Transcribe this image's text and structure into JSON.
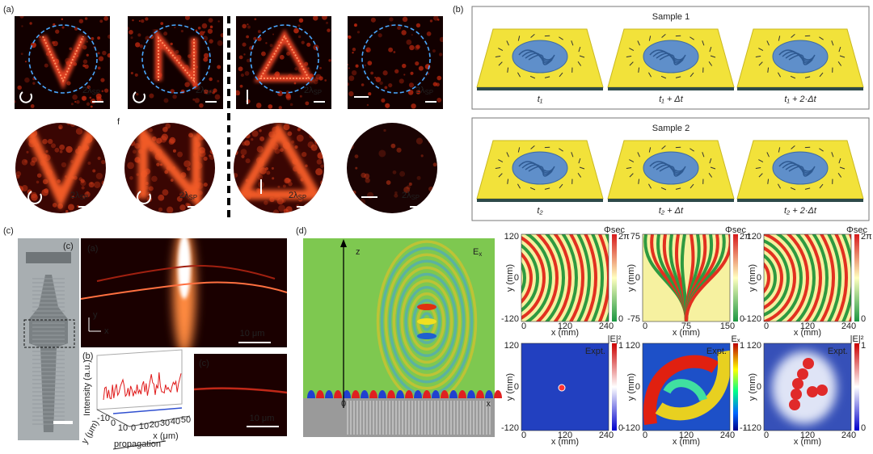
{
  "panel_labels": [
    "(a)",
    "(b)",
    "(c)",
    "(d)"
  ],
  "a": {
    "scale_main": "2λ",
    "scale_sub": "SP",
    "f_label": "f"
  },
  "b": {
    "samples": [
      {
        "title": "Sample 1",
        "times": [
          "t₁",
          "t₁ + Δt",
          "t₁ + 2·Δt"
        ]
      },
      {
        "title": "Sample 2",
        "times": [
          "t₂",
          "t₂ + Δt",
          "t₂ + 2·Δt"
        ]
      }
    ]
  },
  "c": {
    "inner_labels": [
      "(c)",
      "(a)",
      "(b)",
      "(c)"
    ],
    "scale_bar": "10 μm",
    "axis_y": "y",
    "axis_x": "x",
    "plot": {
      "ylabel": "Intensity (a.u.)",
      "xlabel": "x (μm)",
      "zlabel": "y (μm)",
      "direction": "propagation",
      "xticks": [
        "0",
        "10",
        "20",
        "30",
        "40",
        "50"
      ],
      "zticks": [
        "-10",
        "0",
        "10"
      ]
    }
  },
  "d": {
    "sim": {
      "z": "z",
      "field_main": "E",
      "field_sub": "x",
      "origin": "0",
      "x": "x"
    },
    "maps": [
      {
        "ylabel": "y (mm)",
        "xlabel": "x (mm)",
        "yticks": [
          "120",
          "0",
          "-120"
        ],
        "xticks": [
          "0",
          "120",
          "240"
        ],
        "cbar_title": "Φsec",
        "cbar": [
          "2π",
          "0"
        ]
      },
      {
        "ylabel": "y (mm)",
        "xlabel": "x (mm)",
        "yticks": [
          "75",
          "0",
          "-75"
        ],
        "xticks": [
          "0",
          "75",
          "150"
        ],
        "cbar_title": "Φsec",
        "cbar": [
          "2π",
          "0"
        ]
      },
      {
        "ylabel": "y (mm)",
        "xlabel": "x (mm)",
        "yticks": [
          "120",
          "0",
          "-120"
        ],
        "xticks": [
          "0",
          "120",
          "240"
        ],
        "cbar_title": "Φsec",
        "cbar": [
          "2π",
          "0"
        ]
      },
      {
        "ylabel": "y (mm)",
        "xlabel": "x (mm)",
        "yticks": [
          "120",
          "0",
          "-120"
        ],
        "xticks": [
          "0",
          "120",
          "240"
        ],
        "cbar_title": "|E|²",
        "cbar": [
          "1",
          "0"
        ],
        "tag": "Expt."
      },
      {
        "ylabel": "y (mm)",
        "xlabel": "x (mm)",
        "yticks": [
          "120",
          "0",
          "-120"
        ],
        "xticks": [
          "0",
          "120",
          "240"
        ],
        "cbar_title": "Eₓ",
        "cbar": [
          "1",
          "-1"
        ],
        "tag": "Expt."
      },
      {
        "ylabel": "y (mm)",
        "xlabel": "x (mm)",
        "yticks": [
          "120",
          "0",
          "-120"
        ],
        "xticks": [
          "0",
          "120",
          "240"
        ],
        "cbar_title": "|E|²",
        "cbar": [
          "1",
          "0"
        ],
        "tag": "Expt."
      }
    ]
  }
}
